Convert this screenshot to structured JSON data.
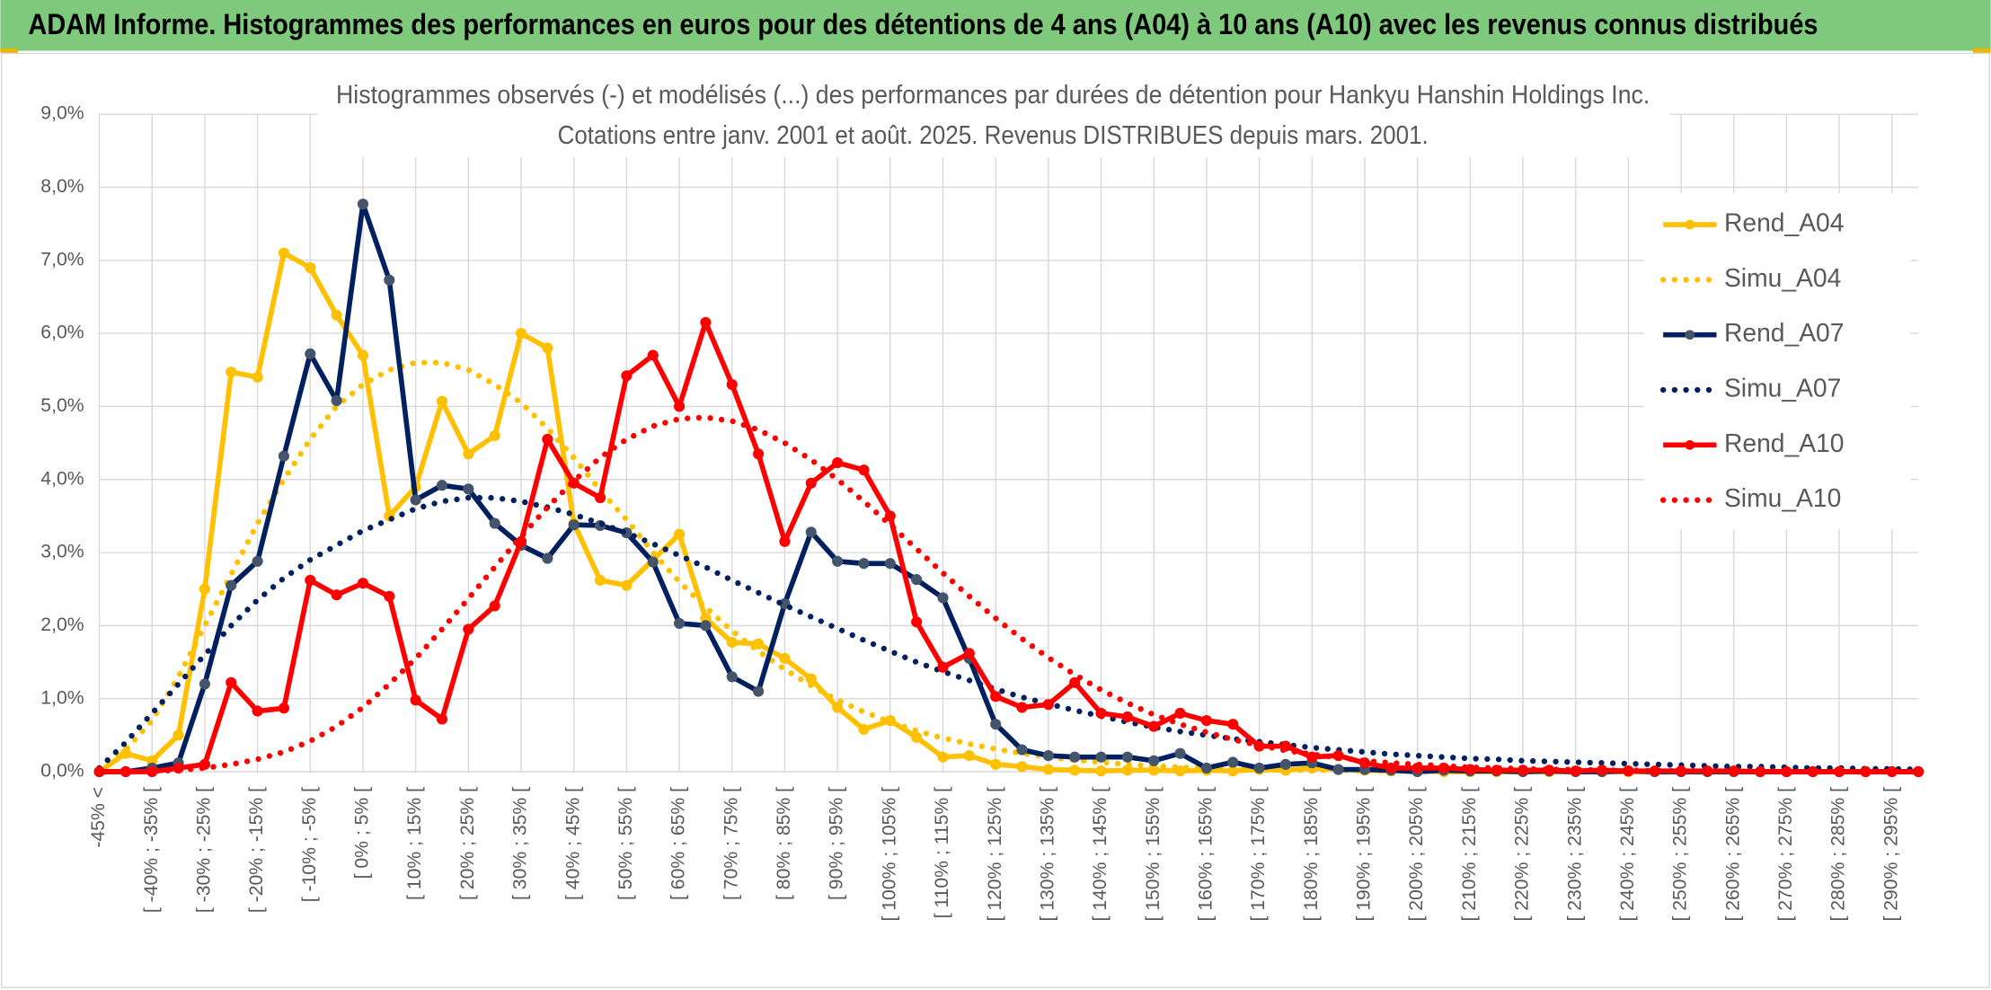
{
  "header": {
    "title": "ADAM Informe. Histogrammes des performances en euros pour des détentions de 4 ans (A04) à 10 ans (A10) avec les revenus connus distribués"
  },
  "chart_data": {
    "type": "line",
    "title": "Histogrammes observés (-) et modélisés (...) des performances par durées de détention pour Hankyu Hanshin Holdings Inc.",
    "subtitle": "Cotations entre janv. 2001 et août. 2025. Revenus DISTRIBUES depuis mars. 2001.",
    "categories": [
      "-45% <",
      null,
      "[ -40% ; -35% [",
      null,
      "[ -30% ; -25% [",
      null,
      "[ -20% ; -15% [",
      null,
      "[ -10% ; -5% [",
      null,
      "[ 0% ; 5% [",
      null,
      "[ 10% ; 15% [",
      null,
      "[ 20% ; 25% [",
      null,
      "[ 30% ; 35% [",
      null,
      "[ 40% ; 45% [",
      null,
      "[ 50% ; 55% [",
      null,
      "[ 60% ; 65% [",
      null,
      "[ 70% ; 75% [",
      null,
      "[ 80% ; 85% [",
      null,
      "[ 90% ; 95% [",
      null,
      "[ 100% ; 105% [",
      null,
      "[ 110% ; 115% [",
      null,
      "[ 120% ; 125% [",
      null,
      "[ 130% ; 135% [",
      null,
      "[ 140% ; 145% [",
      null,
      "[ 150% ; 155% [",
      null,
      "[ 160% ; 165% [",
      null,
      "[ 170% ; 175% [",
      null,
      "[ 180% ; 185% [",
      null,
      "[ 190% ; 195% [",
      null,
      "[ 200% ; 205% [",
      null,
      "[ 210% ; 215% [",
      null,
      "[ 220% ; 225% [",
      null,
      "[ 230% ; 235% [",
      null,
      "[ 240% ; 245% [",
      null,
      "[ 250% ; 255% [",
      null,
      "[ 260% ; 265% [",
      null,
      "[ 270% ; 275% [",
      null,
      "[ 280% ; 285% [",
      null,
      "[ 290% ; 295% [",
      null
    ],
    "series": [
      {
        "name": "Rend_A04",
        "color": "#FFC000",
        "dash": "solid",
        "marker": true,
        "values": [
          0,
          0.25,
          0.15,
          0.5,
          2.5,
          5.47,
          5.4,
          7.1,
          6.9,
          6.25,
          5.7,
          3.5,
          3.9,
          5.07,
          4.35,
          4.6,
          6.0,
          5.8,
          3.4,
          2.62,
          2.55,
          2.9,
          3.25,
          2.1,
          1.77,
          1.75,
          1.55,
          1.27,
          0.88,
          0.58,
          0.7,
          0.47,
          0.2,
          0.22,
          0.1,
          0.07,
          0.03,
          0.02,
          0.01,
          0.02,
          0.02,
          0.01,
          0.02,
          0.01,
          0.03,
          0.02,
          0.05,
          0.03,
          0.02,
          0.01,
          0.01,
          0,
          0,
          0,
          0,
          0,
          0,
          0,
          0,
          0,
          0,
          0,
          0,
          0,
          0,
          0,
          0,
          0,
          0,
          0
        ]
      },
      {
        "name": "Simu_A04",
        "color": "#FFC000",
        "dash": "dotted",
        "marker": false,
        "values": [
          0.05,
          0.3,
          0.7,
          1.3,
          2.0,
          2.7,
          3.4,
          4.0,
          4.55,
          5.0,
          5.3,
          5.5,
          5.6,
          5.6,
          5.5,
          5.3,
          5.05,
          4.7,
          4.3,
          3.85,
          3.45,
          3.0,
          2.6,
          2.25,
          1.93,
          1.65,
          1.4,
          1.18,
          0.98,
          0.82,
          0.68,
          0.56,
          0.46,
          0.38,
          0.31,
          0.25,
          0.2,
          0.16,
          0.13,
          0.1,
          0.08,
          0.06,
          0.05,
          0.04,
          0.03,
          0.02,
          0.02,
          0.02,
          0.01,
          0.01,
          0.01,
          0.01,
          0.01,
          0,
          0,
          0,
          0,
          0,
          0,
          0,
          0,
          0,
          0,
          0,
          0,
          0,
          0,
          0,
          0,
          0
        ]
      },
      {
        "name": "Rend_A07",
        "color": "#002060",
        "marker_color": "#44546A",
        "dash": "solid",
        "marker": true,
        "values": [
          0,
          0,
          0.05,
          0.12,
          1.2,
          2.55,
          2.88,
          4.32,
          5.72,
          5.08,
          7.77,
          6.73,
          3.72,
          3.92,
          3.87,
          3.4,
          3.1,
          2.92,
          3.38,
          3.37,
          3.27,
          2.87,
          2.03,
          2.0,
          1.3,
          1.1,
          2.3,
          3.28,
          2.88,
          2.85,
          2.85,
          2.63,
          2.38,
          1.55,
          0.65,
          0.3,
          0.22,
          0.2,
          0.2,
          0.2,
          0.15,
          0.25,
          0.05,
          0.13,
          0.05,
          0.1,
          0.12,
          0.03,
          0.03,
          0.02,
          0,
          0.02,
          0.01,
          0.01,
          0,
          0.01,
          0,
          0,
          0.01,
          0,
          0,
          0,
          0,
          0,
          0,
          0,
          0,
          0,
          0,
          0
        ]
      },
      {
        "name": "Simu_A07",
        "color": "#002060",
        "dash": "dotted",
        "marker": false,
        "values": [
          0.05,
          0.4,
          0.8,
          1.2,
          1.6,
          2.0,
          2.35,
          2.65,
          2.9,
          3.1,
          3.3,
          3.45,
          3.6,
          3.7,
          3.75,
          3.75,
          3.7,
          3.62,
          3.52,
          3.4,
          3.27,
          3.12,
          2.96,
          2.8,
          2.62,
          2.45,
          2.28,
          2.12,
          1.96,
          1.8,
          1.65,
          1.5,
          1.37,
          1.25,
          1.13,
          1.02,
          0.93,
          0.84,
          0.76,
          0.68,
          0.61,
          0.55,
          0.5,
          0.45,
          0.41,
          0.37,
          0.33,
          0.3,
          0.27,
          0.24,
          0.22,
          0.2,
          0.18,
          0.17,
          0.15,
          0.14,
          0.13,
          0.12,
          0.11,
          0.1,
          0.09,
          0.08,
          0.07,
          0.07,
          0.06,
          0.05,
          0.05,
          0.04,
          0.04,
          0.03
        ]
      },
      {
        "name": "Rend_A10",
        "color": "#FF0000",
        "dash": "solid",
        "marker": true,
        "values": [
          0,
          0,
          0,
          0.05,
          0.1,
          1.22,
          0.83,
          0.87,
          2.62,
          2.42,
          2.58,
          2.4,
          0.98,
          0.72,
          1.95,
          2.27,
          3.15,
          4.55,
          3.95,
          3.75,
          5.42,
          5.7,
          5.0,
          6.15,
          5.3,
          4.35,
          3.15,
          3.95,
          4.23,
          4.13,
          3.5,
          2.05,
          1.43,
          1.62,
          1.03,
          0.88,
          0.92,
          1.22,
          0.8,
          0.75,
          0.62,
          0.8,
          0.7,
          0.65,
          0.35,
          0.35,
          0.2,
          0.22,
          0.12,
          0.05,
          0.05,
          0.05,
          0.03,
          0.02,
          0.02,
          0.02,
          0.01,
          0.02,
          0.01,
          0.01,
          0.01,
          0.01,
          0.01,
          0,
          0,
          0,
          0,
          0,
          0,
          0
        ]
      },
      {
        "name": "Simu_A10",
        "color": "#FF0000",
        "dash": "dotted",
        "marker": false,
        "values": [
          0,
          0,
          0.01,
          0.02,
          0.05,
          0.1,
          0.17,
          0.27,
          0.42,
          0.62,
          0.88,
          1.2,
          1.55,
          1.95,
          2.37,
          2.8,
          3.22,
          3.62,
          3.98,
          4.3,
          4.55,
          4.73,
          4.83,
          4.85,
          4.8,
          4.68,
          4.5,
          4.27,
          4.0,
          3.7,
          3.38,
          3.05,
          2.72,
          2.4,
          2.1,
          1.82,
          1.56,
          1.33,
          1.12,
          0.94,
          0.78,
          0.65,
          0.54,
          0.44,
          0.36,
          0.29,
          0.24,
          0.19,
          0.15,
          0.12,
          0.1,
          0.08,
          0.06,
          0.05,
          0.04,
          0.03,
          0.03,
          0.02,
          0.02,
          0.01,
          0.01,
          0.01,
          0.01,
          0.01,
          0,
          0,
          0,
          0,
          0,
          0
        ]
      }
    ],
    "ylim": [
      0,
      9
    ],
    "yticks": [
      {
        "value": 0,
        "label": "0,0%"
      },
      {
        "value": 1,
        "label": "1,0%"
      },
      {
        "value": 2,
        "label": "2,0%"
      },
      {
        "value": 3,
        "label": "3,0%"
      },
      {
        "value": 4,
        "label": "4,0%"
      },
      {
        "value": 5,
        "label": "5,0%"
      },
      {
        "value": 6,
        "label": "6,0%"
      },
      {
        "value": 7,
        "label": "7,0%"
      },
      {
        "value": 8,
        "label": "8,0%"
      },
      {
        "value": 9,
        "label": "9,0%"
      }
    ],
    "grid": true,
    "legend": "right"
  }
}
